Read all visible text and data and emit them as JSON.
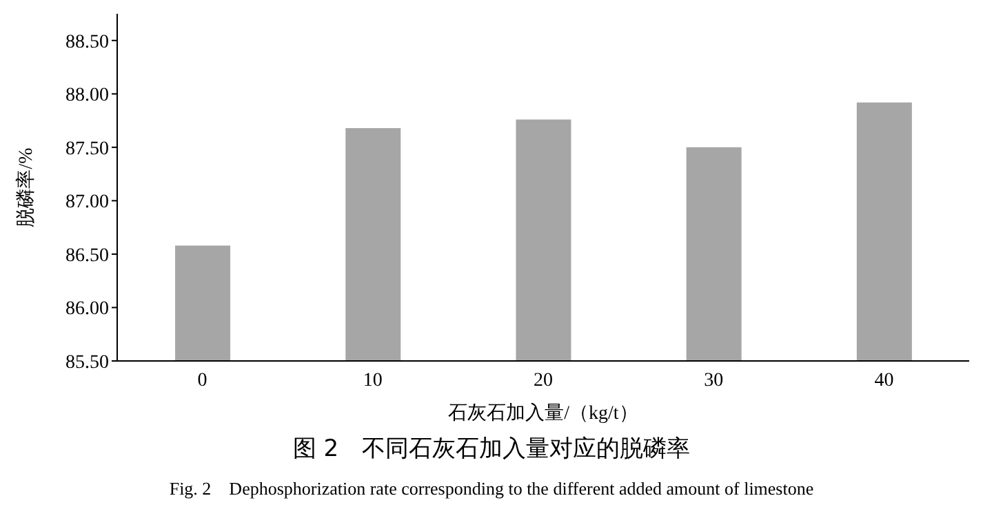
{
  "chart_data": {
    "type": "bar",
    "title": "图 2　不同石灰石加入量对应的脱磷率",
    "xlabel": "石灰石加入量/（kg/t）",
    "ylabel": "脱磷率/%",
    "categories": [
      "0",
      "10",
      "20",
      "30",
      "40"
    ],
    "values": [
      86.58,
      87.68,
      87.76,
      87.5,
      87.92
    ],
    "color": "#a6a6a6",
    "ylim": [
      85.5,
      88.75
    ],
    "yticks": [
      {
        "value": 85.5,
        "label": "85.50"
      },
      {
        "value": 86,
        "label": "86.00"
      },
      {
        "value": 86.5,
        "label": "86.50"
      },
      {
        "value": 87,
        "label": "87.00"
      },
      {
        "value": 87.5,
        "label": "87.50"
      },
      {
        "value": 88,
        "label": "88.00"
      },
      {
        "value": 88.5,
        "label": "88.50"
      }
    ],
    "grid": false,
    "legend": false,
    "annotations": [
      "Fig. 2　Dephosphorization rate corresponding to the different added amount of limestone"
    ]
  }
}
